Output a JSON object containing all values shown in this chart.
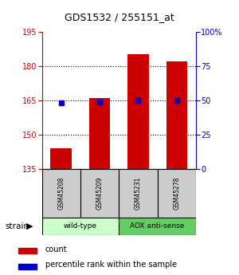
{
  "title": "GDS1532 / 255151_at",
  "samples": [
    "GSM45208",
    "GSM45209",
    "GSM45231",
    "GSM45278"
  ],
  "counts": [
    144,
    166,
    185,
    182
  ],
  "percentiles": [
    48,
    49,
    50,
    50
  ],
  "ylim_left": [
    135,
    195
  ],
  "ylim_right": [
    0,
    100
  ],
  "yticks_left": [
    135,
    150,
    165,
    180,
    195
  ],
  "yticks_right": [
    0,
    25,
    50,
    75,
    100
  ],
  "ytick_labels_right": [
    "0",
    "25",
    "50",
    "75",
    "100%"
  ],
  "bar_color": "#cc0000",
  "dot_color": "#0000cc",
  "bar_width": 0.55,
  "left_axis_color": "#cc0000",
  "right_axis_color": "#0000cc",
  "legend_labels": [
    "count",
    "percentile rank within the sample"
  ],
  "strain_label": "strain",
  "wt_color": "#ccffcc",
  "aox_color": "#66cc66",
  "sample_box_color": "#cccccc",
  "groups_info": [
    {
      "name": "wild-type",
      "start": 0,
      "end": 2
    },
    {
      "name": "AOX anti-sense",
      "start": 2,
      "end": 4
    }
  ]
}
